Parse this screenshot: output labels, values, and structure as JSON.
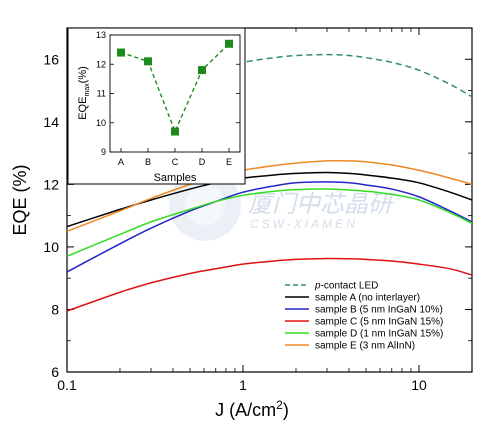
{
  "chart_data": [
    {
      "type": "line",
      "x_label": "J (A/cm",
      "x_label_sup": "2",
      "x_label_end": ")",
      "y_label": "EQE (%)",
      "x_scale": "log",
      "xlim": [
        0.1,
        20
      ],
      "ylim": [
        6,
        17
      ],
      "x_ticks": [
        0.1,
        1,
        10
      ],
      "x_tick_labels": [
        "0.1",
        "1",
        "10"
      ],
      "y_ticks": [
        6,
        8,
        10,
        12,
        14,
        16
      ],
      "y_tick_labels": [
        "6",
        "8",
        "10",
        "12",
        "14",
        "16"
      ],
      "legend_position": "lower-right",
      "series": [
        {
          "name": "p-contact LED",
          "name_prefix": "p",
          "name_rest": "-contact LED",
          "color": "#2e8b7a",
          "dash": true,
          "x": [
            0.1,
            0.15,
            0.2,
            0.3,
            0.5,
            0.7,
            1,
            1.5,
            2,
            3,
            4,
            5,
            7,
            10,
            15,
            20
          ],
          "y": [
            12.1,
            13.1,
            13.8,
            14.6,
            15.3,
            15.65,
            15.9,
            16.05,
            16.12,
            16.15,
            16.12,
            16.05,
            15.9,
            15.65,
            15.2,
            14.8
          ]
        },
        {
          "name": "sample A (no interlayer)",
          "color": "#000000",
          "dash": false,
          "x": [
            0.1,
            0.2,
            0.3,
            0.5,
            0.7,
            1,
            1.5,
            2,
            3,
            4,
            5,
            7,
            10,
            15,
            20
          ],
          "y": [
            10.65,
            11.2,
            11.5,
            11.85,
            12.05,
            12.2,
            12.3,
            12.35,
            12.38,
            12.35,
            12.3,
            12.2,
            12.05,
            11.75,
            11.5
          ]
        },
        {
          "name": "sample B (5 nm InGaN 10%)",
          "color": "#2424c8",
          "dash": false,
          "x": [
            0.1,
            0.2,
            0.3,
            0.5,
            0.7,
            1,
            1.5,
            2,
            3,
            4,
            5,
            7,
            10,
            15,
            20
          ],
          "y": [
            9.2,
            10.1,
            10.6,
            11.15,
            11.45,
            11.75,
            11.95,
            12.05,
            12.08,
            12.05,
            11.98,
            11.85,
            11.6,
            11.15,
            10.8
          ]
        },
        {
          "name": "sample C (5 nm InGaN 15%)",
          "color": "#e01010",
          "dash": false,
          "x": [
            0.1,
            0.2,
            0.3,
            0.5,
            0.7,
            1,
            1.5,
            2,
            3,
            4,
            5,
            7,
            10,
            15,
            20
          ],
          "y": [
            7.95,
            8.55,
            8.85,
            9.15,
            9.3,
            9.45,
            9.55,
            9.6,
            9.63,
            9.62,
            9.6,
            9.55,
            9.45,
            9.3,
            9.1
          ]
        },
        {
          "name": "sample D (1 nm InGaN 15%)",
          "color": "#33dd22",
          "dash": false,
          "x": [
            0.1,
            0.2,
            0.3,
            0.5,
            0.7,
            1,
            1.5,
            2,
            3,
            4,
            5,
            7,
            10,
            15,
            20
          ],
          "y": [
            9.7,
            10.4,
            10.8,
            11.2,
            11.45,
            11.65,
            11.78,
            11.83,
            11.85,
            11.82,
            11.78,
            11.68,
            11.5,
            11.1,
            10.75
          ]
        },
        {
          "name": "sample E (3 nm AlInN)",
          "color": "#ee8822",
          "dash": false,
          "x": [
            0.1,
            0.2,
            0.3,
            0.5,
            0.7,
            1,
            1.5,
            2,
            3,
            4,
            5,
            7,
            10,
            15,
            20
          ],
          "y": [
            10.5,
            11.15,
            11.55,
            12.0,
            12.25,
            12.45,
            12.6,
            12.68,
            12.75,
            12.75,
            12.72,
            12.62,
            12.45,
            12.2,
            12.0
          ]
        }
      ]
    },
    {
      "type": "line",
      "x_label": "Samples",
      "y_label": "EQE",
      "y_label_sub": "max",
      "y_label_unit": "(%)",
      "categories": [
        "A",
        "B",
        "C",
        "D",
        "E"
      ],
      "values": [
        12.4,
        12.1,
        9.7,
        11.8,
        12.7
      ],
      "ylim": [
        9,
        13
      ],
      "y_ticks": [
        9,
        10,
        11,
        12,
        13
      ],
      "y_tick_labels": [
        "9",
        "10",
        "11",
        "12",
        "13"
      ],
      "color": "#1d8a1d",
      "dash": true
    }
  ],
  "watermark": {
    "cn": "厦门中芯晶研",
    "en": "CSW-XIAMEN"
  }
}
